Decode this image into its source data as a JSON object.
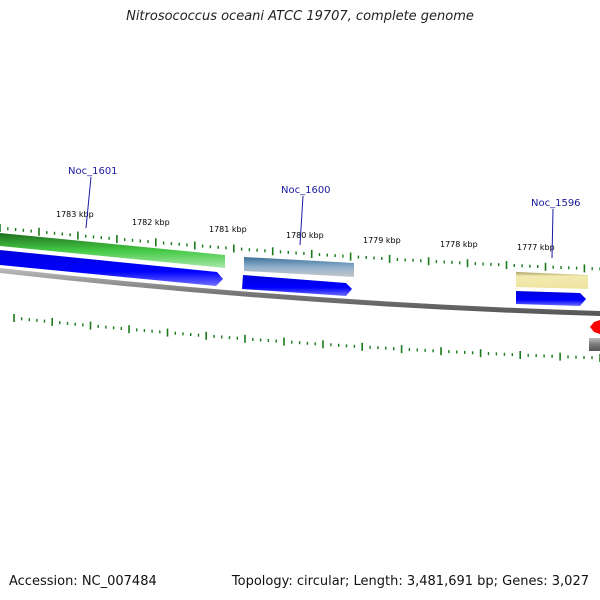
{
  "title": "Nitrosococcus oceani ATCC 19707, complete genome",
  "footer": {
    "accession": "Accession: NC_007484",
    "summary": "Topology: circular; Length: 3,481,691 bp; Genes: 3,027"
  },
  "ruler": {
    "unit": "kbp",
    "labels": [
      "1783 kbp",
      "1782 kbp",
      "1781 kbp",
      "1780 kbp",
      "1779 kbp",
      "1778 kbp",
      "1777 kbp"
    ]
  },
  "genes": [
    {
      "label": "Noc_1601",
      "color": "#2f9a2f"
    },
    {
      "label": "Noc_1600",
      "color": "#4f7fa8"
    },
    {
      "label": "Noc_1596",
      "color": "#e6dc96"
    }
  ],
  "colors": {
    "cds": "#0000ee",
    "backbone": "#808080",
    "ticks": "#1a7a1a",
    "labels": "#1a1aa0",
    "marker": "#ff0000"
  }
}
